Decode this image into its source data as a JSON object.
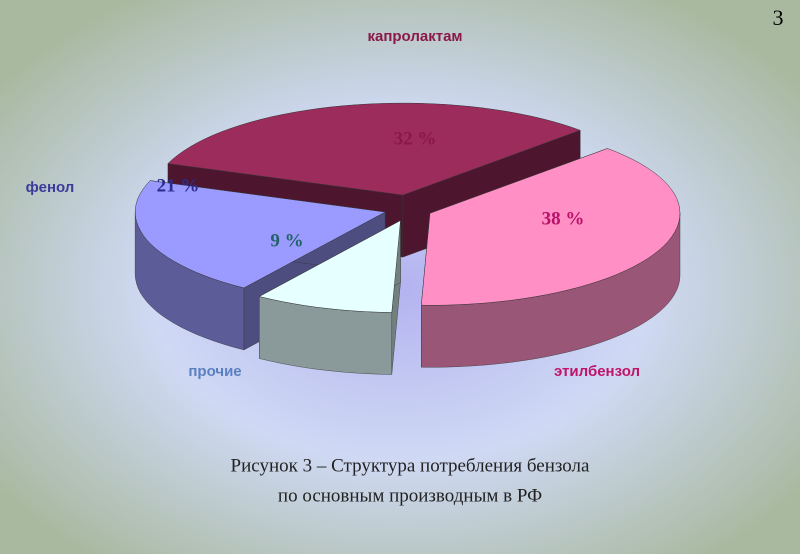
{
  "page_number": "3",
  "chart_data": {
    "type": "pie3d",
    "categories": [
      "капролактам",
      "этилбензол",
      "прочие",
      "фенол"
    ],
    "values": [
      32,
      38,
      9,
      21
    ],
    "value_labels": [
      "32 %",
      "38 %",
      "9 %",
      "21 %"
    ],
    "colors": [
      "#9c2c5c",
      "#ff8fc4",
      "#e6ffff",
      "#9a9aff"
    ]
  },
  "caption": [
    "Рисунок 3 – Структура потребления бензола",
    "по основным производным в РФ"
  ]
}
